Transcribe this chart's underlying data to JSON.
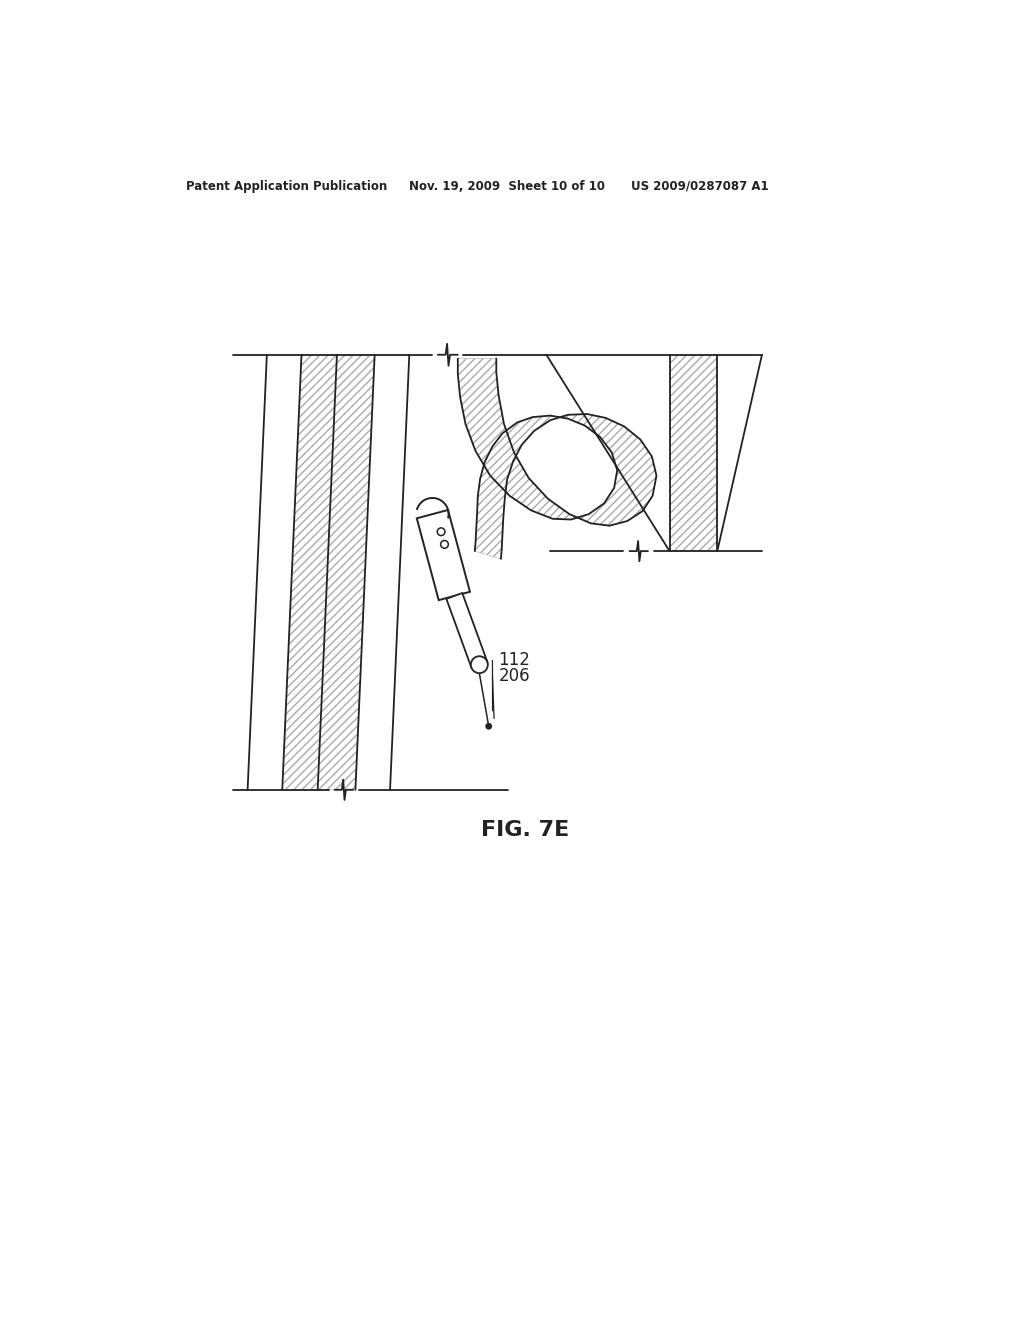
{
  "background_color": "#ffffff",
  "header_left": "Patent Application Publication",
  "header_mid": "Nov. 19, 2009  Sheet 10 of 10",
  "header_right": "US 2009/0287087 A1",
  "figure_label": "FIG. 7E",
  "label_112": "112",
  "label_206": "206",
  "line_color": "#222222",
  "hatch_color": "#999999"
}
